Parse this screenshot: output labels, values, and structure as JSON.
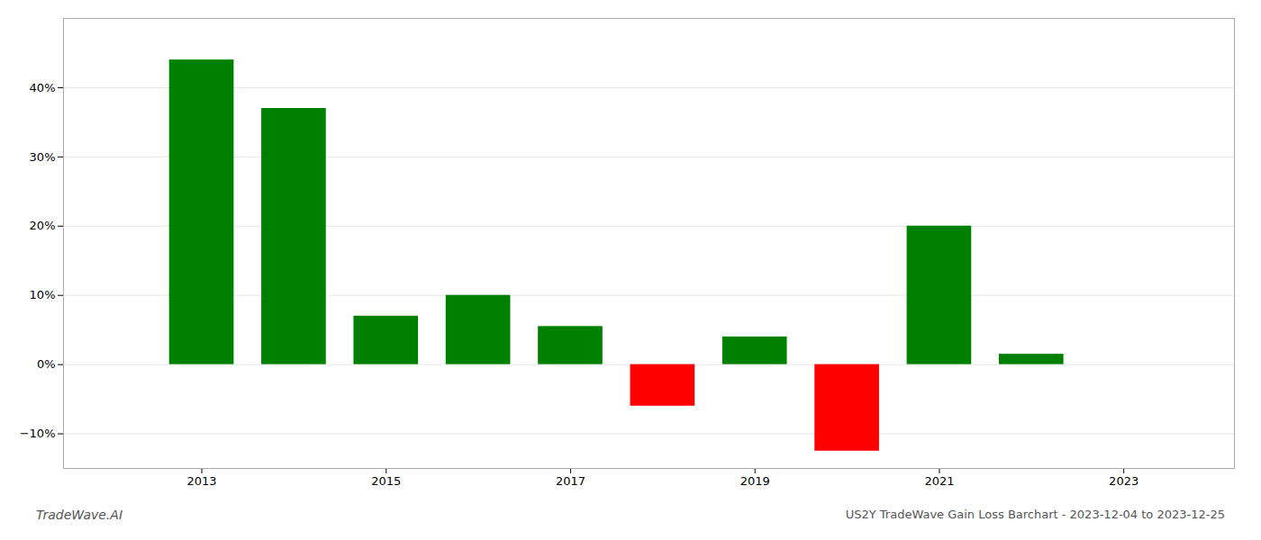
{
  "chart_data": {
    "type": "bar",
    "x": [
      2013,
      2014,
      2015,
      2016,
      2017,
      2018,
      2019,
      2020,
      2021,
      2022,
      2023
    ],
    "values": [
      0.44,
      0.37,
      0.07,
      0.1,
      0.055,
      -0.06,
      0.04,
      -0.125,
      0.2,
      0.015,
      0.0
    ],
    "colors": [
      "#008000",
      "#008000",
      "#008000",
      "#008000",
      "#008000",
      "#ff0000",
      "#008000",
      "#ff0000",
      "#008000",
      "#008000",
      "#008000"
    ],
    "xlim": [
      2011.5,
      2024.2
    ],
    "xticks": [
      2013,
      2015,
      2017,
      2019,
      2021,
      2023
    ],
    "ylim": [
      -0.15,
      0.5
    ],
    "yticks": [
      {
        "value": -0.1,
        "label": "−10%"
      },
      {
        "value": 0.0,
        "label": "0%"
      },
      {
        "value": 0.1,
        "label": "10%"
      },
      {
        "value": 0.2,
        "label": "20%"
      },
      {
        "value": 0.3,
        "label": "30%"
      },
      {
        "value": 0.4,
        "label": "40%"
      }
    ],
    "grid": true,
    "annotations": [
      "TradeWave.AI",
      "US2Y TradeWave Gain Loss Barchart - 2023-12-04 to 2023-12-25"
    ]
  }
}
